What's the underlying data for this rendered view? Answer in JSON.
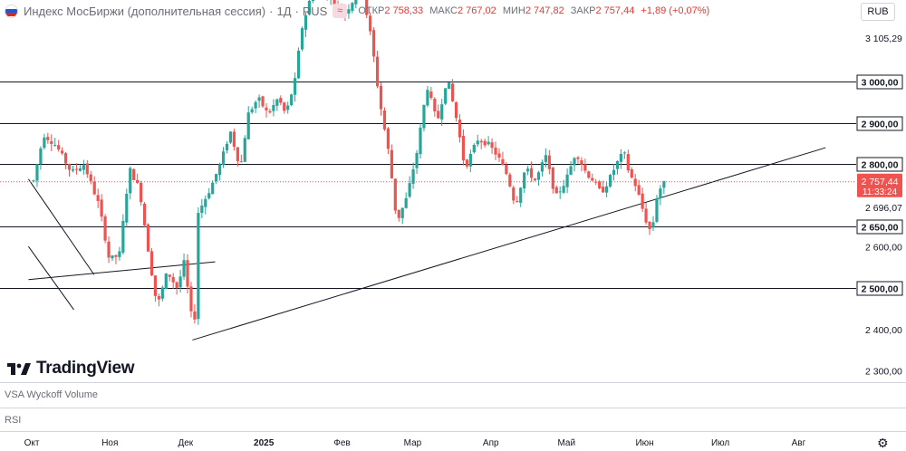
{
  "header": {
    "title": "Индекс МосБиржи (дополнительная сессия)",
    "interval": "1Д",
    "exchange": "RUS",
    "open_label": "ОТКР",
    "open_value": "2 758,33",
    "high_label": "МАКС",
    "high_value": "2 767,02",
    "low_label": "МИН",
    "low_value": "2 747,82",
    "close_label": "ЗАКР",
    "close_value": "2 757,44",
    "change": "+1,89 (+0,07%)"
  },
  "currency": "RUB",
  "logo_text": "TradingView",
  "panes": {
    "vsa": "VSA Wyckoff Volume",
    "rsi": "RSI"
  },
  "colors": {
    "up": "#26a69a",
    "down": "#ef5350",
    "line": "#131722",
    "grid_text": "#131722"
  },
  "chart_data": {
    "type": "candlestick",
    "y_axis": {
      "ylim": [
        2250,
        3180
      ],
      "tick_labels": [
        "3 105,29",
        "3 000,00",
        "2 900,00",
        "2 800,00",
        "2 757,44",
        "11:33:24",
        "2 696,07",
        "2 650,00",
        "2 600,00",
        "2 500,00",
        "2 400,00",
        "2 300,00"
      ],
      "plain_ticks": [
        {
          "value": 3105.29,
          "label": "3 105,29"
        },
        {
          "value": 2696.07,
          "label": "2 696,07"
        },
        {
          "value": 2600,
          "label": "2 600,00"
        },
        {
          "value": 2400,
          "label": "2 400,00"
        },
        {
          "value": 2300,
          "label": "2 300,00"
        }
      ]
    },
    "x_axis": {
      "month_labels": [
        {
          "label": "Окт",
          "day": 0
        },
        {
          "label": "Ноя",
          "day": 31
        },
        {
          "label": "Дек",
          "day": 61
        },
        {
          "label": "2025",
          "day": 92,
          "bold": true
        },
        {
          "label": "Фев",
          "day": 123
        },
        {
          "label": "Мар",
          "day": 151
        },
        {
          "label": "Апр",
          "day": 182
        },
        {
          "label": "Май",
          "day": 212
        },
        {
          "label": "Июн",
          "day": 243
        },
        {
          "label": "Июл",
          "day": 273
        },
        {
          "label": "Авг",
          "day": 304
        }
      ]
    },
    "horizontal_levels": [
      {
        "value": 3000,
        "label": "3 000,00"
      },
      {
        "value": 2900,
        "label": "2 900,00"
      },
      {
        "value": 2800,
        "label": "2 800,00"
      },
      {
        "value": 2650,
        "label": "2 650,00"
      },
      {
        "value": 2500,
        "label": "2 500,00"
      }
    ],
    "last_price": {
      "value": 2757.44,
      "label": "2 757,44",
      "timer": "11:33:24"
    },
    "trendlines": [
      {
        "from": {
          "day": -2,
          "price": 2764
        },
        "to": {
          "day": 24,
          "price": 2533
        }
      },
      {
        "from": {
          "day": -2,
          "price": 2601
        },
        "to": {
          "day": 16,
          "price": 2448
        }
      },
      {
        "from": {
          "day": -2,
          "price": 2521
        },
        "to": {
          "day": 72,
          "price": 2564
        }
      },
      {
        "from": {
          "day": 63,
          "price": 2375
        },
        "to": {
          "day": 314,
          "price": 2840
        }
      }
    ],
    "price_path": [
      {
        "day": 0,
        "price": 2760
      },
      {
        "day": 4,
        "price": 2872
      },
      {
        "day": 9,
        "price": 2845
      },
      {
        "day": 15,
        "price": 2780
      },
      {
        "day": 20,
        "price": 2800
      },
      {
        "day": 26,
        "price": 2700
      },
      {
        "day": 30,
        "price": 2570
      },
      {
        "day": 34,
        "price": 2580
      },
      {
        "day": 38,
        "price": 2790
      },
      {
        "day": 42,
        "price": 2740
      },
      {
        "day": 46,
        "price": 2570
      },
      {
        "day": 49,
        "price": 2455
      },
      {
        "day": 53,
        "price": 2540
      },
      {
        "day": 57,
        "price": 2500
      },
      {
        "day": 60,
        "price": 2570
      },
      {
        "day": 62,
        "price": 2440
      },
      {
        "day": 64,
        "price": 2430
      },
      {
        "day": 65,
        "price": 2680
      },
      {
        "day": 70,
        "price": 2740
      },
      {
        "day": 74,
        "price": 2800
      },
      {
        "day": 78,
        "price": 2880
      },
      {
        "day": 82,
        "price": 2790
      },
      {
        "day": 85,
        "price": 2920
      },
      {
        "day": 89,
        "price": 2960
      },
      {
        "day": 93,
        "price": 2920
      },
      {
        "day": 97,
        "price": 2960
      },
      {
        "day": 100,
        "price": 2920
      },
      {
        "day": 104,
        "price": 3010
      },
      {
        "day": 106,
        "price": 3120
      },
      {
        "day": 111,
        "price": 3230
      },
      {
        "day": 118,
        "price": 3200
      },
      {
        "day": 123,
        "price": 3160
      },
      {
        "day": 130,
        "price": 3230
      },
      {
        "day": 134,
        "price": 3100
      },
      {
        "day": 137,
        "price": 2960
      },
      {
        "day": 141,
        "price": 2820
      },
      {
        "day": 144,
        "price": 2660
      },
      {
        "day": 148,
        "price": 2720
      },
      {
        "day": 152,
        "price": 2830
      },
      {
        "day": 156,
        "price": 2990
      },
      {
        "day": 160,
        "price": 2900
      },
      {
        "day": 164,
        "price": 3010
      },
      {
        "day": 168,
        "price": 2900
      },
      {
        "day": 171,
        "price": 2790
      },
      {
        "day": 176,
        "price": 2860
      },
      {
        "day": 180,
        "price": 2850
      },
      {
        "day": 184,
        "price": 2820
      },
      {
        "day": 188,
        "price": 2770
      },
      {
        "day": 191,
        "price": 2700
      },
      {
        "day": 195,
        "price": 2790
      },
      {
        "day": 199,
        "price": 2760
      },
      {
        "day": 203,
        "price": 2820
      },
      {
        "day": 207,
        "price": 2720
      },
      {
        "day": 211,
        "price": 2760
      },
      {
        "day": 215,
        "price": 2830
      },
      {
        "day": 219,
        "price": 2780
      },
      {
        "day": 222,
        "price": 2760
      },
      {
        "day": 225,
        "price": 2730
      },
      {
        "day": 228,
        "price": 2760
      },
      {
        "day": 231,
        "price": 2800
      },
      {
        "day": 234,
        "price": 2830
      },
      {
        "day": 236,
        "price": 2780
      },
      {
        "day": 239,
        "price": 2745
      },
      {
        "day": 241,
        "price": 2700
      },
      {
        "day": 243,
        "price": 2660
      },
      {
        "day": 245,
        "price": 2632
      },
      {
        "day": 247,
        "price": 2720
      },
      {
        "day": 249,
        "price": 2750
      },
      {
        "day": 251,
        "price": 2757
      }
    ]
  }
}
